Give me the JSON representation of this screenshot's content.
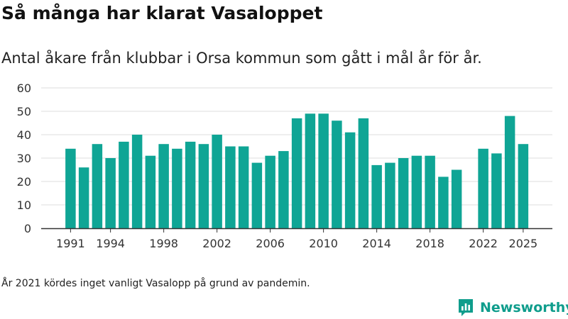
{
  "title": "Så många har klarat Vasaloppet",
  "subtitle": "Antal åkare från klubbar i Orsa kommun som gått i mål år för år.",
  "footnote": "År 2021 kördes inget vanligt Vasalopp på grund av pandemin.",
  "brand": {
    "name": "Newsworthy",
    "icon": "newsworthy-logo-icon"
  },
  "colors": {
    "bar": "#0fa595",
    "grid": "#dddddd",
    "axis": "#333333",
    "brand": "#0f9d8c"
  },
  "chart_data": {
    "type": "bar",
    "x": [
      1991,
      1992,
      1993,
      1994,
      1995,
      1996,
      1997,
      1998,
      1999,
      2000,
      2001,
      2002,
      2003,
      2004,
      2005,
      2006,
      2007,
      2008,
      2009,
      2010,
      2011,
      2012,
      2013,
      2014,
      2015,
      2016,
      2017,
      2018,
      2019,
      2020,
      2021,
      2022,
      2023,
      2024,
      2025
    ],
    "values": [
      34,
      26,
      36,
      30,
      37,
      40,
      31,
      36,
      34,
      37,
      36,
      40,
      35,
      35,
      28,
      31,
      33,
      47,
      49,
      49,
      46,
      41,
      47,
      27,
      28,
      30,
      31,
      31,
      22,
      25,
      null,
      34,
      32,
      48,
      36
    ],
    "x_ticks": [
      "1991",
      "1994",
      "1998",
      "2002",
      "2006",
      "2010",
      "2014",
      "2018",
      "2022",
      "2025"
    ],
    "y_ticks": [
      "0",
      "10",
      "20",
      "30",
      "40",
      "50",
      "60"
    ],
    "ylim": [
      0,
      60
    ],
    "grid": true,
    "xlabel": "",
    "ylabel": ""
  }
}
